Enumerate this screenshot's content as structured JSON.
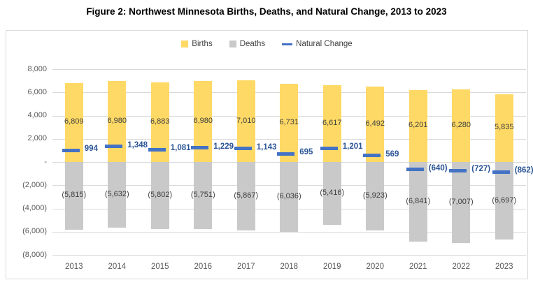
{
  "title": "Figure 2: Northwest Minnesota Births, Deaths, and Natural Change, 2013 to 2023",
  "colors": {
    "births": "#FFD965",
    "deaths": "#C9C9C9",
    "natural_change_marker": "#4472C4",
    "natural_change_label": "#2B5597",
    "gridline": "#D9D9D9",
    "axis_text": "#595959",
    "bar_label_text": "#404040",
    "chart_border": "#D9D9D9",
    "title_text": "#000000"
  },
  "chart_data": {
    "type": "bar",
    "title": "Figure 2: Northwest Minnesota Births, Deaths, and Natural Change, 2013 to 2023",
    "categories": [
      "2013",
      "2014",
      "2015",
      "2016",
      "2017",
      "2018",
      "2019",
      "2020",
      "2021",
      "2022",
      "2023"
    ],
    "series": [
      {
        "name": "Births",
        "render": "column",
        "color": "#FFD965",
        "values": [
          6809,
          6980,
          6883,
          6980,
          7010,
          6731,
          6617,
          6492,
          6201,
          6280,
          5835
        ],
        "labels": [
          "6,809",
          "6,980",
          "6,883",
          "6,980",
          "7,010",
          "6,731",
          "6,617",
          "6,492",
          "6,201",
          "6,280",
          "5,835"
        ]
      },
      {
        "name": "Deaths",
        "render": "column",
        "color": "#C9C9C9",
        "values": [
          -5815,
          -5632,
          -5802,
          -5751,
          -5867,
          -6036,
          -5416,
          -5923,
          -6841,
          -7007,
          -6697
        ],
        "labels": [
          "(5,815)",
          "(5,632)",
          "(5,802)",
          "(5,751)",
          "(5,867)",
          "(6,036)",
          "(5,416)",
          "(5,923)",
          "(6,841)",
          "(7,007)",
          "(6,697)"
        ]
      },
      {
        "name": "Natural Change",
        "render": "dash-marker",
        "color": "#4472C4",
        "label_color": "#2B5597",
        "values": [
          994,
          1348,
          1081,
          1229,
          1143,
          695,
          1201,
          569,
          -640,
          -727,
          -862
        ],
        "labels": [
          "994",
          "1,348",
          "1,081",
          "1,229",
          "1,143",
          "695",
          "1,201",
          "569",
          "(640)",
          "(727)",
          "(862)"
        ]
      }
    ],
    "y_axis": {
      "min": -8000,
      "max": 8000,
      "step": 2000,
      "tick_labels": [
        "8,000",
        "6,000",
        "4,000",
        "2,000",
        "-",
        "(2,000)",
        "(4,000)",
        "(6,000)",
        "(8,000)"
      ]
    },
    "x_axis": {
      "tick_labels": [
        "2013",
        "2014",
        "2015",
        "2016",
        "2017",
        "2018",
        "2019",
        "2020",
        "2021",
        "2022",
        "2023"
      ]
    },
    "legend": {
      "position": "top",
      "entries": [
        "Births",
        "Deaths",
        "Natural Change"
      ]
    },
    "grid": true
  }
}
